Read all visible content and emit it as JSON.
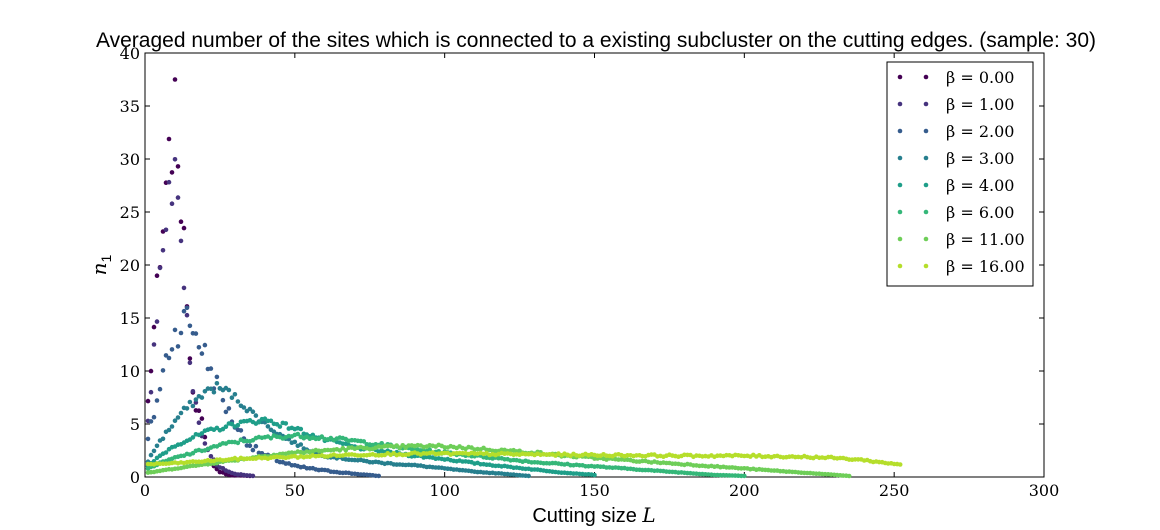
{
  "chart_data": {
    "type": "scatter",
    "title": "Averaged number of the sites which is connected to a existing subcluster on the cutting edges. (sample: 30)",
    "xlabel": {
      "text": "Cutting size ",
      "math": "L"
    },
    "ylabel": {
      "base": "n",
      "sub": "1"
    },
    "xlim": [
      0,
      300
    ],
    "ylim": [
      0,
      40
    ],
    "xticks": [
      0,
      50,
      100,
      150,
      200,
      250,
      300
    ],
    "yticks": [
      0,
      5,
      10,
      15,
      20,
      25,
      30,
      35,
      40
    ],
    "grid": false,
    "legend_position": "top-right",
    "series": [
      {
        "name": "β = 0.00",
        "color": "#440154",
        "x_max": 35,
        "peak_x": 10,
        "peak_y": 33.5,
        "profile": [
          [
            1,
            7
          ],
          [
            2,
            10.5
          ],
          [
            3,
            14
          ],
          [
            4,
            17
          ],
          [
            5,
            19
          ],
          [
            6,
            23
          ],
          [
            7,
            25.5
          ],
          [
            8,
            29
          ],
          [
            9,
            32
          ],
          [
            10,
            33.5
          ],
          [
            11,
            31.5
          ],
          [
            12,
            26
          ],
          [
            13,
            21
          ],
          [
            14,
            18
          ],
          [
            15,
            11.5
          ],
          [
            16,
            9
          ],
          [
            17,
            7
          ],
          [
            18,
            6
          ],
          [
            19,
            5
          ],
          [
            20,
            3.5
          ],
          [
            21,
            2.5
          ],
          [
            22,
            1.5
          ],
          [
            23,
            1
          ],
          [
            25,
            0.5
          ],
          [
            28,
            0.2
          ],
          [
            35,
            0.1
          ]
        ]
      },
      {
        "name": "β = 1.00",
        "color": "#46337e",
        "x_max": 36,
        "peak_x": 10,
        "peak_y": 27.5,
        "profile": [
          [
            1,
            5
          ],
          [
            2,
            9
          ],
          [
            3,
            13
          ],
          [
            4,
            16
          ],
          [
            5,
            19
          ],
          [
            6,
            22
          ],
          [
            7,
            24.5
          ],
          [
            8,
            26
          ],
          [
            9,
            27
          ],
          [
            10,
            27.5
          ],
          [
            11,
            26
          ],
          [
            12,
            24
          ],
          [
            13,
            18
          ],
          [
            14,
            15
          ],
          [
            15,
            11
          ],
          [
            16,
            8.5
          ],
          [
            17,
            6.5
          ],
          [
            18,
            5
          ],
          [
            19,
            4
          ],
          [
            20,
            3
          ],
          [
            22,
            2
          ],
          [
            24,
            1.2
          ],
          [
            27,
            0.6
          ],
          [
            30,
            0.3
          ],
          [
            36,
            0.1
          ]
        ]
      },
      {
        "name": "β = 2.00",
        "color": "#365c8d",
        "x_max": 78,
        "peak_x": 14,
        "peak_y": 15,
        "profile": [
          [
            1,
            3.5
          ],
          [
            3,
            6
          ],
          [
            5,
            8.5
          ],
          [
            7,
            11
          ],
          [
            9,
            13
          ],
          [
            11,
            14
          ],
          [
            14,
            15
          ],
          [
            16,
            14
          ],
          [
            18,
            13
          ],
          [
            20,
            11.5
          ],
          [
            22,
            10
          ],
          [
            25,
            8
          ],
          [
            28,
            6
          ],
          [
            31,
            4.5
          ],
          [
            35,
            3
          ],
          [
            40,
            2
          ],
          [
            45,
            1.5
          ],
          [
            50,
            1
          ],
          [
            60,
            0.6
          ],
          [
            70,
            0.3
          ],
          [
            78,
            0.1
          ]
        ]
      },
      {
        "name": "β = 3.00",
        "color": "#277f8e",
        "x_max": 128,
        "peak_x": 26,
        "peak_y": 8.5,
        "profile": [
          [
            1,
            1.5
          ],
          [
            4,
            3
          ],
          [
            8,
            4.5
          ],
          [
            12,
            6
          ],
          [
            16,
            7
          ],
          [
            20,
            8
          ],
          [
            24,
            8.5
          ],
          [
            28,
            8
          ],
          [
            32,
            7
          ],
          [
            36,
            6
          ],
          [
            40,
            5
          ],
          [
            45,
            4
          ],
          [
            50,
            3.2
          ],
          [
            55,
            2.5
          ],
          [
            60,
            2
          ],
          [
            70,
            1.6
          ],
          [
            80,
            1.3
          ],
          [
            90,
            1.1
          ],
          [
            100,
            0.8
          ],
          [
            110,
            0.5
          ],
          [
            120,
            0.3
          ],
          [
            128,
            0.1
          ]
        ]
      },
      {
        "name": "β = 4.00",
        "color": "#1f9e89",
        "x_max": 150,
        "peak_x": 42,
        "peak_y": 5.4,
        "profile": [
          [
            1,
            1
          ],
          [
            5,
            2
          ],
          [
            10,
            3
          ],
          [
            15,
            3.6
          ],
          [
            20,
            4.2
          ],
          [
            25,
            4.6
          ],
          [
            30,
            5
          ],
          [
            35,
            5.2
          ],
          [
            40,
            5.4
          ],
          [
            45,
            5
          ],
          [
            50,
            4.6
          ],
          [
            55,
            4
          ],
          [
            60,
            3.5
          ],
          [
            65,
            3.2
          ],
          [
            70,
            2.8
          ],
          [
            80,
            2.4
          ],
          [
            90,
            2
          ],
          [
            100,
            1.7
          ],
          [
            110,
            1.3
          ],
          [
            120,
            1
          ],
          [
            130,
            0.7
          ],
          [
            140,
            0.4
          ],
          [
            150,
            0.2
          ]
        ]
      },
      {
        "name": "β = 6.00",
        "color": "#35b779",
        "x_max": 200,
        "peak_x": 55,
        "peak_y": 3.9,
        "profile": [
          [
            1,
            0.8
          ],
          [
            5,
            1.3
          ],
          [
            10,
            1.8
          ],
          [
            15,
            2.2
          ],
          [
            20,
            2.6
          ],
          [
            25,
            3
          ],
          [
            30,
            3.3
          ],
          [
            35,
            3.5
          ],
          [
            40,
            3.7
          ],
          [
            50,
            3.9
          ],
          [
            60,
            3.7
          ],
          [
            70,
            3.4
          ],
          [
            80,
            3
          ],
          [
            90,
            2.6
          ],
          [
            100,
            2.3
          ],
          [
            110,
            2
          ],
          [
            120,
            1.7
          ],
          [
            130,
            1.4
          ],
          [
            140,
            1.2
          ],
          [
            150,
            1
          ],
          [
            160,
            0.8
          ],
          [
            170,
            0.6
          ],
          [
            180,
            0.4
          ],
          [
            190,
            0.2
          ],
          [
            200,
            0.1
          ]
        ]
      },
      {
        "name": "β = 11.00",
        "color": "#6ece58",
        "x_max": 235,
        "peak_x": 95,
        "peak_y": 2.9,
        "profile": [
          [
            1,
            0.4
          ],
          [
            10,
            0.8
          ],
          [
            20,
            1.2
          ],
          [
            30,
            1.6
          ],
          [
            40,
            2
          ],
          [
            50,
            2.3
          ],
          [
            60,
            2.5
          ],
          [
            70,
            2.7
          ],
          [
            80,
            2.8
          ],
          [
            90,
            2.9
          ],
          [
            100,
            2.9
          ],
          [
            110,
            2.7
          ],
          [
            120,
            2.5
          ],
          [
            130,
            2.3
          ],
          [
            140,
            2
          ],
          [
            150,
            1.8
          ],
          [
            160,
            1.6
          ],
          [
            170,
            1.4
          ],
          [
            180,
            1.2
          ],
          [
            190,
            1
          ],
          [
            200,
            0.8
          ],
          [
            210,
            0.6
          ],
          [
            220,
            0.4
          ],
          [
            230,
            0.2
          ],
          [
            235,
            0.1
          ]
        ]
      },
      {
        "name": "β = 16.00",
        "color": "#b5de2b",
        "x_max": 252,
        "peak_x": 90,
        "peak_y": 2.2,
        "profile": [
          [
            1,
            1.2
          ],
          [
            10,
            1.3
          ],
          [
            20,
            1.5
          ],
          [
            30,
            1.7
          ],
          [
            40,
            1.8
          ],
          [
            50,
            1.9
          ],
          [
            60,
            2
          ],
          [
            70,
            2.1
          ],
          [
            80,
            2.15
          ],
          [
            90,
            2.2
          ],
          [
            100,
            2.2
          ],
          [
            120,
            2.15
          ],
          [
            140,
            2.1
          ],
          [
            160,
            2.05
          ],
          [
            180,
            2
          ],
          [
            200,
            2
          ],
          [
            220,
            1.9
          ],
          [
            230,
            1.8
          ],
          [
            240,
            1.6
          ],
          [
            245,
            1.4
          ],
          [
            250,
            1.25
          ],
          [
            252,
            1.2
          ]
        ]
      }
    ]
  }
}
